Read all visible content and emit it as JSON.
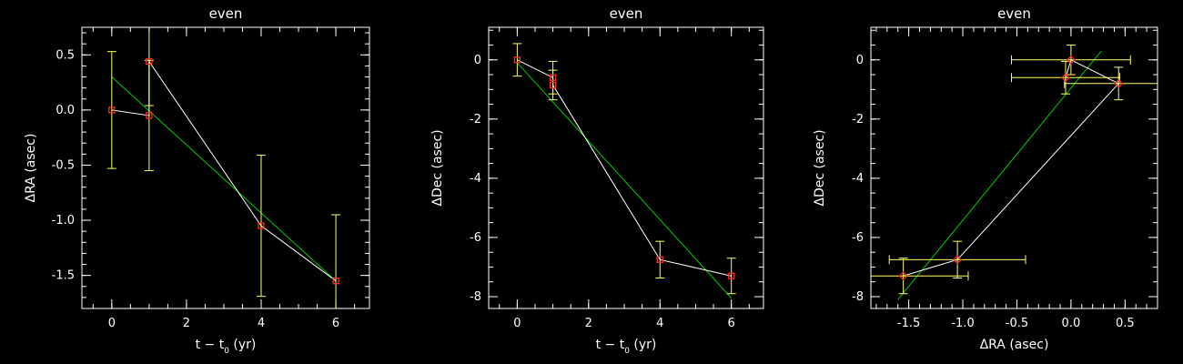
{
  "colors": {
    "background": "#000000",
    "axes": "#ffffff",
    "data_line": "#ffffff",
    "fit_line": "#00cc00",
    "error_bar": "#ffff66",
    "marker": "#ff2a2a"
  },
  "chart_data": [
    {
      "type": "line",
      "title": "even",
      "xlabel_main": "t − t",
      "xlabel_sub": "0",
      "xlabel_unit": " (yr)",
      "ylabel_prefix": "Δ",
      "ylabel": "RA (asec)",
      "xlim": [
        -0.8,
        6.9
      ],
      "ylim": [
        -1.8,
        0.75
      ],
      "xticks": [
        0,
        2,
        4,
        6
      ],
      "xtick_labels": [
        "0",
        "2",
        "4",
        "6"
      ],
      "yticks": [
        0.5,
        0.0,
        -0.5,
        -1.0,
        -1.5
      ],
      "ytick_labels": [
        "0.5",
        "0.0",
        "-0.5",
        "-1.0",
        "-1.5"
      ],
      "x_minor_step": 0.5,
      "y_minor_step": 0.1,
      "marker": "square",
      "points": [
        {
          "x": 0,
          "y": 0.0,
          "yerr": 0.53
        },
        {
          "x": 1,
          "y": -0.05,
          "yerr": 0.5
        },
        {
          "x": 1,
          "y": 0.44,
          "yerr": 0.4
        },
        {
          "x": 4,
          "y": -1.05,
          "yerr": 0.64
        },
        {
          "x": 6,
          "y": -1.55,
          "yerr": 0.6
        }
      ],
      "fit": [
        [
          0,
          0.3
        ],
        [
          6,
          -1.55
        ]
      ]
    },
    {
      "type": "line",
      "title": "even",
      "xlabel_main": "t − t",
      "xlabel_sub": "0",
      "xlabel_unit": " (yr)",
      "ylabel_prefix": "Δ",
      "ylabel": "Dec (asec)",
      "xlim": [
        -0.8,
        6.9
      ],
      "ylim": [
        -8.4,
        1.1
      ],
      "xticks": [
        0,
        2,
        4,
        6
      ],
      "xtick_labels": [
        "0",
        "2",
        "4",
        "6"
      ],
      "yticks": [
        0,
        -2,
        -4,
        -6,
        -8
      ],
      "ytick_labels": [
        "0",
        "-2",
        "-4",
        "-6",
        "-8"
      ],
      "x_minor_step": 0.5,
      "y_minor_step": 0.5,
      "marker": "square",
      "points": [
        {
          "x": 0,
          "y": 0.0,
          "yerr": 0.55
        },
        {
          "x": 1,
          "y": -0.6,
          "yerr": 0.55
        },
        {
          "x": 1,
          "y": -0.85,
          "yerr": 0.5
        },
        {
          "x": 4,
          "y": -6.75,
          "yerr": 0.62
        },
        {
          "x": 6,
          "y": -7.3,
          "yerr": 0.6
        }
      ],
      "fit": [
        [
          0,
          -0.1
        ],
        [
          6,
          -8.05
        ]
      ]
    },
    {
      "type": "scatter",
      "title": "even",
      "xlabel_main": "ΔRA (asec)",
      "xlabel_sub": "",
      "xlabel_unit": "",
      "ylabel_prefix": "Δ",
      "ylabel": "Dec (asec)",
      "xlim": [
        -1.85,
        0.8
      ],
      "ylim": [
        -8.4,
        1.1
      ],
      "xticks": [
        -1.5,
        -1.0,
        -0.5,
        0.0,
        0.5
      ],
      "xtick_labels": [
        "-1.5",
        "-1.0",
        "-0.5",
        "0.0",
        "0.5"
      ],
      "yticks": [
        0,
        -2,
        -4,
        -6,
        -8
      ],
      "ytick_labels": [
        "0",
        "-2",
        "-4",
        "-6",
        "-8"
      ],
      "x_minor_step": 0.1,
      "y_minor_step": 0.5,
      "marker": "diamond",
      "points": [
        {
          "x": -1.55,
          "y": -7.3,
          "xerr": 0.6,
          "yerr": 0.6
        },
        {
          "x": -1.05,
          "y": -6.75,
          "xerr": 0.63,
          "yerr": 0.62
        },
        {
          "x": 0.44,
          "y": -0.8,
          "xerr": 0.5,
          "yerr": 0.55
        },
        {
          "x": 0.0,
          "y": 0.0,
          "xerr": 0.55,
          "yerr": 0.5
        },
        {
          "x": -0.05,
          "y": -0.6,
          "xerr": 0.5,
          "yerr": 0.55
        }
      ],
      "fit": [
        [
          -1.6,
          -8.1
        ],
        [
          0.28,
          0.3
        ]
      ]
    }
  ]
}
